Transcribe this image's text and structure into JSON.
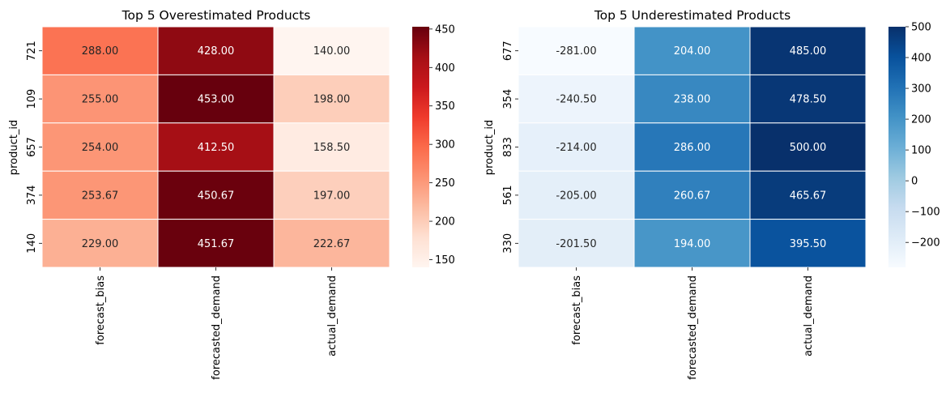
{
  "chart_data": [
    {
      "type": "heatmap",
      "title": "Top 5 Overestimated Products",
      "xlabel": "",
      "ylabel": "product_id",
      "columns": [
        "forecast_bias",
        "forecasted_demand",
        "actual_demand"
      ],
      "rows": [
        "721",
        "109",
        "657",
        "374",
        "140"
      ],
      "values": [
        [
          288.0,
          428.0,
          140.0
        ],
        [
          255.0,
          453.0,
          198.0
        ],
        [
          254.0,
          412.5,
          158.5
        ],
        [
          253.67,
          450.67,
          197.0
        ],
        [
          229.0,
          451.67,
          222.67
        ]
      ],
      "cell_labels": [
        [
          "288.00",
          "428.00",
          "140.00"
        ],
        [
          "255.00",
          "453.00",
          "198.00"
        ],
        [
          "254.00",
          "412.50",
          "158.50"
        ],
        [
          "253.67",
          "450.67",
          "197.00"
        ],
        [
          "229.00",
          "451.67",
          "222.67"
        ]
      ],
      "colormap": "Reds",
      "vmin": 140.0,
      "vmax": 453.0,
      "colorbar_ticks": [
        150,
        200,
        250,
        300,
        350,
        400,
        450
      ],
      "colorbar_tick_labels": [
        "150",
        "200",
        "250",
        "300",
        "350",
        "400",
        "450"
      ]
    },
    {
      "type": "heatmap",
      "title": "Top 5 Underestimated Products",
      "xlabel": "",
      "ylabel": "product_id",
      "columns": [
        "forecast_bias",
        "forecasted_demand",
        "actual_demand"
      ],
      "rows": [
        "677",
        "354",
        "833",
        "561",
        "330"
      ],
      "values": [
        [
          -281.0,
          204.0,
          485.0
        ],
        [
          -240.5,
          238.0,
          478.5
        ],
        [
          -214.0,
          286.0,
          500.0
        ],
        [
          -205.0,
          260.67,
          465.67
        ],
        [
          -201.5,
          194.0,
          395.5
        ]
      ],
      "cell_labels": [
        [
          "-281.00",
          "204.00",
          "485.00"
        ],
        [
          "-240.50",
          "238.00",
          "478.50"
        ],
        [
          "-214.00",
          "286.00",
          "500.00"
        ],
        [
          "-205.00",
          "260.67",
          "465.67"
        ],
        [
          "-201.50",
          "194.00",
          "395.50"
        ]
      ],
      "colormap": "Blues",
      "vmin": -281.0,
      "vmax": 500.0,
      "colorbar_ticks": [
        -200,
        -100,
        0,
        100,
        200,
        300,
        400,
        500
      ],
      "colorbar_tick_labels": [
        "−200",
        "−100",
        "0",
        "100",
        "200",
        "300",
        "400",
        "500"
      ]
    }
  ],
  "colors": {
    "Reds": [
      "#fff5f0",
      "#fee0d2",
      "#fcbba1",
      "#fc9272",
      "#fb6a4a",
      "#ef3b2c",
      "#cb181d",
      "#a50f15",
      "#67000d"
    ],
    "Blues": [
      "#f7fbff",
      "#deebf7",
      "#c6dbef",
      "#9ecae1",
      "#6baed6",
      "#4292c6",
      "#2171b5",
      "#08519c",
      "#08306b"
    ]
  }
}
